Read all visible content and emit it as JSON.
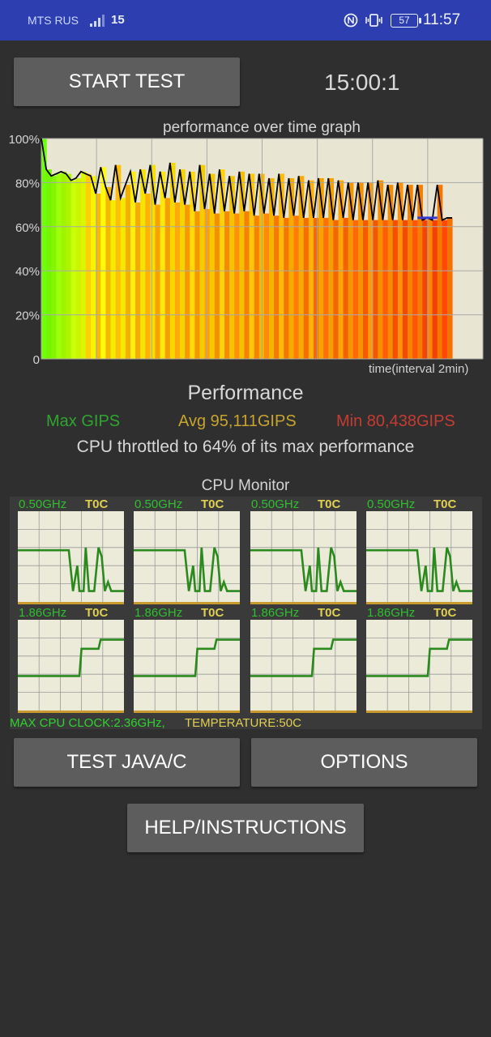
{
  "status_bar": {
    "carrier": "MTS RUS",
    "network": "15",
    "battery": "57",
    "time": "11:57",
    "icons": [
      "signal-icon",
      "nfc-icon",
      "vibrate-icon",
      "battery-icon"
    ]
  },
  "controls": {
    "start_test": "START TEST",
    "timer": "15:00:1",
    "test_java_c": "TEST JAVA/C",
    "options": "OPTIONS",
    "help": "HELP/INSTRUCTIONS"
  },
  "performance_graph": {
    "title": "performance over time graph",
    "y_ticks": [
      "100%",
      "80%",
      "60%",
      "40%",
      "20%",
      "0"
    ],
    "time_label": "time(interval 2min)",
    "colors": {
      "background": "#e8e6d2",
      "grid": "#a9a9a9",
      "line": "#000000",
      "low_line": "#3a3ad0"
    },
    "chart_data": {
      "type": "line",
      "title": "performance over time graph",
      "xlabel": "time(interval 2min)",
      "ylabel": "",
      "ylim": [
        0,
        100
      ],
      "y_unit": "%",
      "series": [
        {
          "values": [
            100,
            86,
            83,
            84,
            85,
            84,
            81,
            82,
            85,
            84,
            83,
            75,
            87,
            78,
            72,
            88,
            73,
            79,
            85,
            71,
            86,
            75,
            88,
            70,
            85,
            73,
            89,
            71,
            86,
            70,
            85,
            67,
            88,
            68,
            84,
            66,
            86,
            67,
            83,
            66,
            85,
            67,
            84,
            65,
            84,
            66,
            82,
            65,
            84,
            64,
            82,
            65,
            83,
            64,
            81,
            64,
            82,
            64,
            82,
            63,
            81,
            64,
            80,
            63,
            80,
            63,
            80,
            63,
            81,
            63,
            79,
            63,
            80,
            63,
            79,
            63,
            79,
            63,
            64,
            63,
            79,
            63,
            64,
            64
          ]
        }
      ]
    }
  },
  "performance": {
    "title": "Performance",
    "max": "Max GIPS",
    "avg": "Avg 95,111GIPS",
    "min": "Min 80,438GIPS",
    "throttle": "CPU throttled to 64% of its max performance",
    "colors": {
      "max": "#2fa52f",
      "avg": "#c7a42f",
      "min": "#c63b32"
    }
  },
  "cpu_monitor": {
    "title": "CPU Monitor",
    "graph_bg": "#ecebda",
    "line_color": "#2a8a1e",
    "cores": [
      {
        "freq": "0.50GHz",
        "temp": "T0C"
      },
      {
        "freq": "0.50GHz",
        "temp": "T0C"
      },
      {
        "freq": "0.50GHz",
        "temp": "T0C"
      },
      {
        "freq": "0.50GHz",
        "temp": "T0C"
      },
      {
        "freq": "1.86GHz",
        "temp": "T0C"
      },
      {
        "freq": "1.86GHz",
        "temp": "T0C"
      },
      {
        "freq": "1.86GHz",
        "temp": "T0C"
      },
      {
        "freq": "1.86GHz",
        "temp": "T0C"
      }
    ],
    "footer_clock": "MAX CPU CLOCK:2.36GHz,",
    "footer_temp": "TEMPERATURE:50C"
  }
}
